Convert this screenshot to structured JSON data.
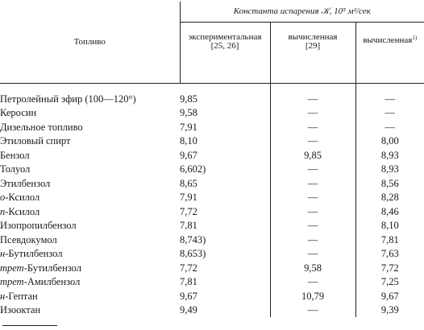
{
  "table": {
    "col_fuel": "Топливо",
    "col_group": "Константа испарения 𝒦, 10⁵ м²/сек",
    "col_exp": "экспериментальная",
    "col_exp_ref": "[25, 26]",
    "col_calc29": "вычисленная",
    "col_calc29_ref": "[29]",
    "col_calc1": "вычисленная",
    "col_calc1_ref": "1)",
    "rows": [
      {
        "prefix": "",
        "name": "Петролейный эфир (100—120°)",
        "exp": "9,85",
        "exp_note": "",
        "calc29": "—",
        "calc1": "—"
      },
      {
        "prefix": "",
        "name": "Керосин",
        "exp": "9,58",
        "exp_note": "",
        "calc29": "—",
        "calc1": "—"
      },
      {
        "prefix": "",
        "name": "Дизельное топливо",
        "exp": "7,91",
        "exp_note": "",
        "calc29": "—",
        "calc1": "—"
      },
      {
        "prefix": "",
        "name": "Этиловый спирт",
        "exp": "8,10",
        "exp_note": "",
        "calc29": "—",
        "calc1": "8,00"
      },
      {
        "prefix": "",
        "name": "Бензол",
        "exp": "9,67",
        "exp_note": "",
        "calc29": "9,85",
        "calc1": "8,93"
      },
      {
        "prefix": "",
        "name": "Толуол",
        "exp": "6,60",
        "exp_note": "2)",
        "calc29": "—",
        "calc1": "8,93"
      },
      {
        "prefix": "",
        "name": "Этилбензол",
        "exp": "8,65",
        "exp_note": "",
        "calc29": "—",
        "calc1": "8,56"
      },
      {
        "prefix": "о",
        "name": "-Ксилол",
        "exp": "7,91",
        "exp_note": "",
        "calc29": "—",
        "calc1": "8,28"
      },
      {
        "prefix": "n",
        "name": "-Ксилол",
        "exp": "7,72",
        "exp_note": "",
        "calc29": "—",
        "calc1": "8,46"
      },
      {
        "prefix": "",
        "name": "Изопропилбензол",
        "exp": "7,81",
        "exp_note": "",
        "calc29": "—",
        "calc1": "8,10"
      },
      {
        "prefix": "",
        "name": "Псевдокумол",
        "exp": "8,74",
        "exp_note": "3)",
        "calc29": "—",
        "calc1": "7,81"
      },
      {
        "prefix": "н",
        "name": "-Бутилбензол",
        "exp": "8,65",
        "exp_note": "3)",
        "calc29": "—",
        "calc1": "7,63"
      },
      {
        "prefix": "трет",
        "name": "-Бутилбензол",
        "exp": "7,72",
        "exp_note": "",
        "calc29": "9,58",
        "calc1": "7,72"
      },
      {
        "prefix": "трет",
        "name": "-Амилбензол",
        "exp": "7,81",
        "exp_note": "",
        "calc29": "—",
        "calc1": "7,25"
      },
      {
        "prefix": "н",
        "name": "-Гептан",
        "exp": "9,67",
        "exp_note": "",
        "calc29": "10,79",
        "calc1": "9,67"
      },
      {
        "prefix": "",
        "name": "Изооктан",
        "exp": "9,49",
        "exp_note": "",
        "calc29": "—",
        "calc1": "9,39"
      }
    ]
  }
}
